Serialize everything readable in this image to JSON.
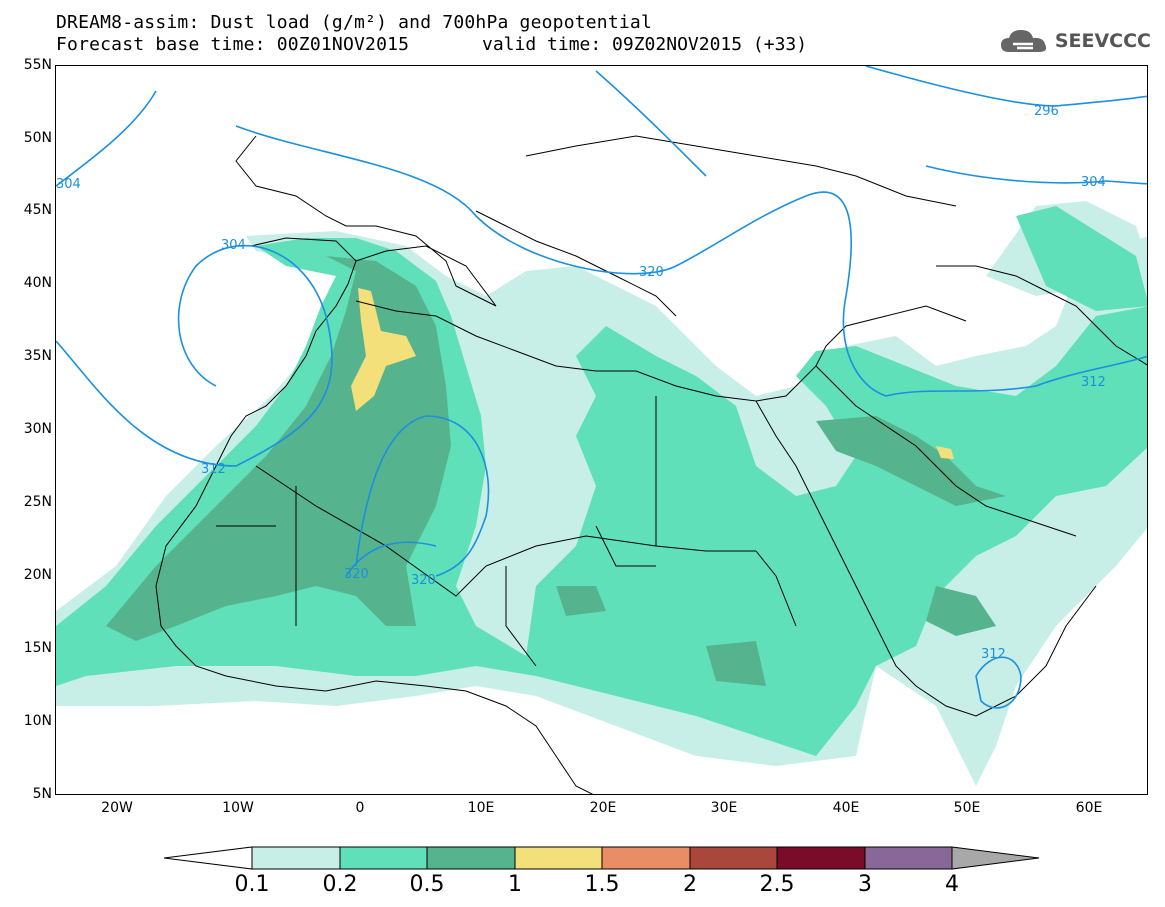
{
  "title": {
    "line1": "DREAM8-assim: Dust load (g/m²) and 700hPa geopotential",
    "line2": "Forecast base time: 00Z01NOV2015",
    "valid": "valid time: 09Z02NOV2015 (+33)"
  },
  "logo": {
    "text": "SEEVCCC",
    "icon": "cloud-logo-icon"
  },
  "map": {
    "lon_range": [
      -25,
      65
    ],
    "lat_range": [
      5,
      55
    ],
    "lat_ticks": [
      "55N",
      "50N",
      "45N",
      "40N",
      "35N",
      "30N",
      "25N",
      "20N",
      "15N",
      "10N",
      "5N"
    ],
    "lon_ticks": [
      "20W",
      "10W",
      "0",
      "10E",
      "20E",
      "30E",
      "40E",
      "50E",
      "60E"
    ],
    "contour_labels": [
      "304",
      "304",
      "296",
      "304",
      "320",
      "312",
      "312",
      "320",
      "320",
      "312"
    ]
  },
  "legend": {
    "levels": [
      "0.1",
      "0.2",
      "0.5",
      "1",
      "1.5",
      "2",
      "2.5",
      "3",
      "4"
    ],
    "colors": [
      "#ffffff",
      "#c8eee8",
      "#5fe0b8",
      "#55b48e",
      "#f4e07a",
      "#e98d66",
      "#a9473d",
      "#7a0c2a",
      "#8a6799",
      "#a8a8a8"
    ]
  },
  "colors": {
    "dust_low": "#c8eee8",
    "dust_mid": "#5fe0b8",
    "dust_high": "#55b48e",
    "dust_peak": "#f4e07a",
    "contour": "#1a90e0"
  }
}
